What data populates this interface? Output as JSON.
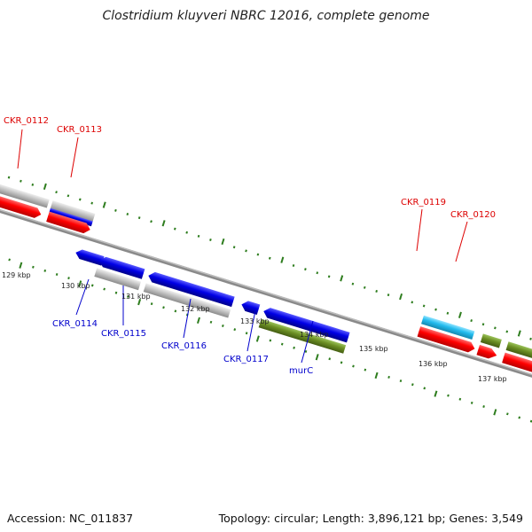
{
  "title": "Clostridium kluyveri NBRC 12016, complete genome",
  "footer": {
    "accession": "Accession: NC_011837",
    "topology": "Topology: circular; Length: 3,896,121 bp; Genes: 3,549"
  },
  "colors": {
    "red": "#ff0000",
    "blue": "#0000e6",
    "lightblue": "#22bbee",
    "gray": "#bdbdbd",
    "olive": "#6b8e23",
    "tick": "#2e7d1e",
    "red_label": "#dd0000",
    "blue_label": "#0000cc"
  },
  "scale_ticks": [
    {
      "label": "129 kbp",
      "pos_kbp": 129
    },
    {
      "label": "130 kbp",
      "pos_kbp": 130
    },
    {
      "label": "131 kbp",
      "pos_kbp": 131
    },
    {
      "label": "132 kbp",
      "pos_kbp": 132
    },
    {
      "label": "133 kbp",
      "pos_kbp": 133
    },
    {
      "label": "134 kbp",
      "pos_kbp": 134
    },
    {
      "label": "135 kbp",
      "pos_kbp": 135
    },
    {
      "label": "136 kbp",
      "pos_kbp": 136
    },
    {
      "label": "137 kbp",
      "pos_kbp": 137
    }
  ],
  "gene_labels": [
    {
      "text": "CKR_0112",
      "color": "red"
    },
    {
      "text": "CKR_0113",
      "color": "red"
    },
    {
      "text": "CKR_0119",
      "color": "red"
    },
    {
      "text": "CKR_0120",
      "color": "red"
    },
    {
      "text": "CKR_0114",
      "color": "blue"
    },
    {
      "text": "CKR_0115",
      "color": "blue"
    },
    {
      "text": "CKR_0116",
      "color": "blue"
    },
    {
      "text": "CKR_0117",
      "color": "blue"
    },
    {
      "text": "murC",
      "color": "blue"
    }
  ]
}
